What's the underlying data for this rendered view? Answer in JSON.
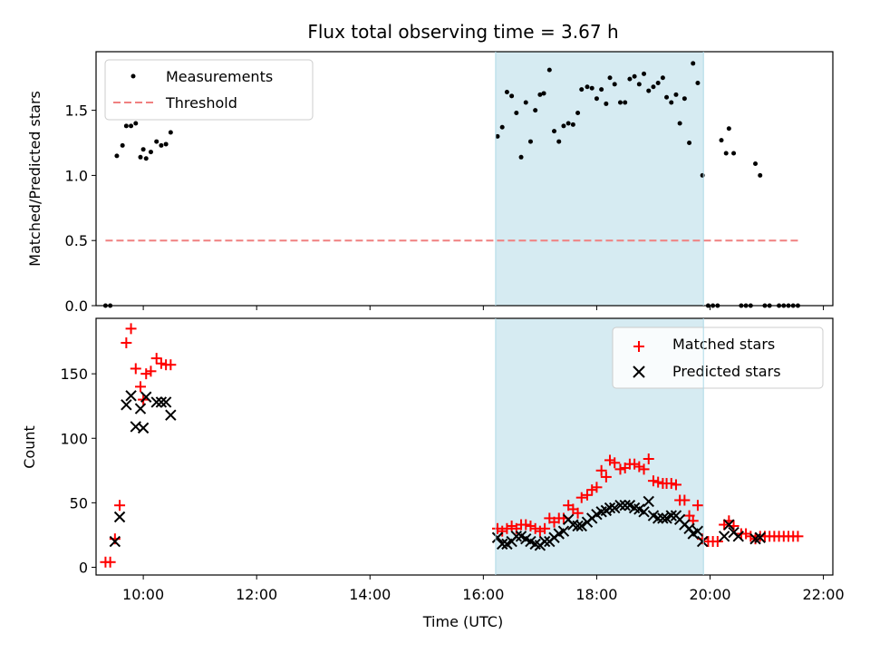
{
  "chart_data": {
    "type": "scatter",
    "title": "Flux total observing time = 3.67 h",
    "xlabel": "Time (UTC)",
    "xlim": [
      "09:10",
      "22:10"
    ],
    "x_ticks": [
      "10:00",
      "12:00",
      "14:00",
      "16:00",
      "18:00",
      "20:00",
      "22:00"
    ],
    "shaded_span": {
      "start": "16:13",
      "end": "19:53",
      "color": "#add8e6"
    },
    "panels": [
      {
        "ylabel": "Matched/Predicted stars",
        "ylim": [
          0,
          1.95
        ],
        "y_ticks": [
          "0.0",
          "0.5",
          "1.0",
          "1.5"
        ],
        "legend": {
          "position": "upper-left"
        },
        "series": [
          {
            "name": "Measurements",
            "marker": "dot",
            "color": "#000000",
            "points": [
              [
                "09:20",
                0.0
              ],
              [
                "09:25",
                0.0
              ],
              [
                "09:32",
                1.15
              ],
              [
                "09:38",
                1.23
              ],
              [
                "09:42",
                1.38
              ],
              [
                "09:47",
                1.38
              ],
              [
                "09:52",
                1.4
              ],
              [
                "09:57",
                1.14
              ],
              [
                "10:00",
                1.2
              ],
              [
                "10:03",
                1.13
              ],
              [
                "10:08",
                1.18
              ],
              [
                "10:14",
                1.26
              ],
              [
                "10:19",
                1.23
              ],
              [
                "10:24",
                1.24
              ],
              [
                "10:29",
                1.33
              ],
              [
                "16:15",
                1.3
              ],
              [
                "16:20",
                1.37
              ],
              [
                "16:25",
                1.64
              ],
              [
                "16:30",
                1.61
              ],
              [
                "16:35",
                1.48
              ],
              [
                "16:40",
                1.14
              ],
              [
                "16:45",
                1.56
              ],
              [
                "16:50",
                1.26
              ],
              [
                "16:55",
                1.5
              ],
              [
                "17:00",
                1.62
              ],
              [
                "17:04",
                1.63
              ],
              [
                "17:10",
                1.81
              ],
              [
                "17:15",
                1.34
              ],
              [
                "17:20",
                1.26
              ],
              [
                "17:25",
                1.38
              ],
              [
                "17:30",
                1.4
              ],
              [
                "17:35",
                1.39
              ],
              [
                "17:40",
                1.48
              ],
              [
                "17:44",
                1.66
              ],
              [
                "17:50",
                1.68
              ],
              [
                "17:55",
                1.67
              ],
              [
                "18:00",
                1.59
              ],
              [
                "18:05",
                1.66
              ],
              [
                "18:10",
                1.55
              ],
              [
                "18:14",
                1.75
              ],
              [
                "18:19",
                1.7
              ],
              [
                "18:25",
                1.56
              ],
              [
                "18:30",
                1.56
              ],
              [
                "18:35",
                1.74
              ],
              [
                "18:40",
                1.76
              ],
              [
                "18:45",
                1.7
              ],
              [
                "18:50",
                1.78
              ],
              [
                "18:55",
                1.65
              ],
              [
                "19:00",
                1.68
              ],
              [
                "19:05",
                1.71
              ],
              [
                "19:10",
                1.75
              ],
              [
                "19:14",
                1.6
              ],
              [
                "19:19",
                1.56
              ],
              [
                "19:24",
                1.62
              ],
              [
                "19:28",
                1.4
              ],
              [
                "19:33",
                1.59
              ],
              [
                "19:38",
                1.25
              ],
              [
                "19:42",
                1.86
              ],
              [
                "19:47",
                1.71
              ],
              [
                "19:52",
                1.0
              ],
              [
                "19:58",
                0.0
              ],
              [
                "20:03",
                0.0
              ],
              [
                "20:08",
                0.0
              ],
              [
                "20:12",
                1.27
              ],
              [
                "20:17",
                1.17
              ],
              [
                "20:20",
                1.36
              ],
              [
                "20:25",
                1.17
              ],
              [
                "20:33",
                0.0
              ],
              [
                "20:38",
                0.0
              ],
              [
                "20:43",
                0.0
              ],
              [
                "20:48",
                1.09
              ],
              [
                "20:53",
                1.0
              ],
              [
                "20:58",
                0.0
              ],
              [
                "21:03",
                0.0
              ],
              [
                "21:13",
                0.0
              ],
              [
                "21:18",
                0.0
              ],
              [
                "21:23",
                0.0
              ],
              [
                "21:28",
                0.0
              ],
              [
                "21:33",
                0.0
              ]
            ]
          },
          {
            "name": "Threshold",
            "style": "dashed",
            "color": "#f08080",
            "line": [
              [
                "09:20",
                0.5
              ],
              [
                "21:35",
                0.5
              ]
            ]
          }
        ]
      },
      {
        "ylabel": "Count",
        "ylim": [
          -6,
          193
        ],
        "y_ticks": [
          "0",
          "50",
          "100",
          "150"
        ],
        "legend": {
          "position": "upper-right"
        },
        "series": [
          {
            "name": "Matched stars",
            "marker": "plus",
            "color": "#ff0000",
            "points": [
              [
                "09:20",
                4
              ],
              [
                "09:25",
                4
              ],
              [
                "09:30",
                22
              ],
              [
                "09:35",
                48
              ],
              [
                "09:42",
                174
              ],
              [
                "09:47",
                185
              ],
              [
                "09:52",
                154
              ],
              [
                "09:57",
                140
              ],
              [
                "10:00",
                130
              ],
              [
                "10:03",
                150
              ],
              [
                "10:08",
                152
              ],
              [
                "10:14",
                162
              ],
              [
                "10:19",
                158
              ],
              [
                "10:24",
                157
              ],
              [
                "10:29",
                157
              ],
              [
                "16:15",
                30
              ],
              [
                "16:20",
                28
              ],
              [
                "16:25",
                30
              ],
              [
                "16:30",
                32
              ],
              [
                "16:35",
                30
              ],
              [
                "16:40",
                33
              ],
              [
                "16:45",
                33
              ],
              [
                "16:50",
                32
              ],
              [
                "16:55",
                30
              ],
              [
                "17:00",
                28
              ],
              [
                "17:05",
                30
              ],
              [
                "17:10",
                38
              ],
              [
                "17:15",
                35
              ],
              [
                "17:20",
                38
              ],
              [
                "17:25",
                38
              ],
              [
                "17:30",
                48
              ],
              [
                "17:35",
                45
              ],
              [
                "17:40",
                42
              ],
              [
                "17:44",
                54
              ],
              [
                "17:50",
                56
              ],
              [
                "17:55",
                60
              ],
              [
                "18:00",
                62
              ],
              [
                "18:05",
                75
              ],
              [
                "18:10",
                70
              ],
              [
                "18:14",
                83
              ],
              [
                "18:19",
                81
              ],
              [
                "18:25",
                76
              ],
              [
                "18:30",
                77
              ],
              [
                "18:35",
                80
              ],
              [
                "18:40",
                80
              ],
              [
                "18:45",
                78
              ],
              [
                "18:50",
                76
              ],
              [
                "18:55",
                84
              ],
              [
                "19:00",
                67
              ],
              [
                "19:05",
                66
              ],
              [
                "19:10",
                65
              ],
              [
                "19:14",
                65
              ],
              [
                "19:19",
                65
              ],
              [
                "19:24",
                64
              ],
              [
                "19:28",
                52
              ],
              [
                "19:33",
                52
              ],
              [
                "19:38",
                40
              ],
              [
                "19:42",
                36
              ],
              [
                "19:47",
                48
              ],
              [
                "19:52",
                22
              ],
              [
                "19:58",
                20
              ],
              [
                "20:03",
                20
              ],
              [
                "20:08",
                20
              ],
              [
                "20:15",
                33
              ],
              [
                "20:20",
                36
              ],
              [
                "20:25",
                32
              ],
              [
                "20:33",
                26
              ],
              [
                "20:38",
                26
              ],
              [
                "20:43",
                24
              ],
              [
                "20:48",
                22
              ],
              [
                "20:53",
                24
              ],
              [
                "20:58",
                24
              ],
              [
                "21:03",
                24
              ],
              [
                "21:08",
                24
              ],
              [
                "21:13",
                24
              ],
              [
                "21:18",
                24
              ],
              [
                "21:23",
                24
              ],
              [
                "21:28",
                24
              ],
              [
                "21:33",
                24
              ]
            ]
          },
          {
            "name": "Predicted stars",
            "marker": "x",
            "color": "#000000",
            "points": [
              [
                "09:30",
                20
              ],
              [
                "09:35",
                39
              ],
              [
                "09:42",
                126
              ],
              [
                "09:47",
                133
              ],
              [
                "09:52",
                109
              ],
              [
                "09:57",
                123
              ],
              [
                "10:00",
                108
              ],
              [
                "10:03",
                132
              ],
              [
                "10:14",
                128
              ],
              [
                "10:19",
                128
              ],
              [
                "10:24",
                128
              ],
              [
                "10:29",
                118
              ],
              [
                "16:15",
                23
              ],
              [
                "16:20",
                18
              ],
              [
                "16:25",
                18
              ],
              [
                "16:30",
                20
              ],
              [
                "16:35",
                24
              ],
              [
                "16:40",
                24
              ],
              [
                "16:45",
                22
              ],
              [
                "16:50",
                20
              ],
              [
                "16:55",
                18
              ],
              [
                "17:00",
                17
              ],
              [
                "17:05",
                20
              ],
              [
                "17:10",
                20
              ],
              [
                "17:15",
                23
              ],
              [
                "17:20",
                26
              ],
              [
                "17:25",
                28
              ],
              [
                "17:30",
                37
              ],
              [
                "17:35",
                33
              ],
              [
                "17:40",
                32
              ],
              [
                "17:44",
                32
              ],
              [
                "17:50",
                35
              ],
              [
                "17:55",
                38
              ],
              [
                "18:00",
                41
              ],
              [
                "18:05",
                43
              ],
              [
                "18:10",
                44
              ],
              [
                "18:14",
                46
              ],
              [
                "18:19",
                46
              ],
              [
                "18:25",
                48
              ],
              [
                "18:30",
                48
              ],
              [
                "18:35",
                48
              ],
              [
                "18:40",
                46
              ],
              [
                "18:45",
                45
              ],
              [
                "18:50",
                43
              ],
              [
                "18:55",
                51
              ],
              [
                "19:00",
                40
              ],
              [
                "19:05",
                38
              ],
              [
                "19:10",
                38
              ],
              [
                "19:14",
                38
              ],
              [
                "19:19",
                40
              ],
              [
                "19:24",
                40
              ],
              [
                "19:28",
                37
              ],
              [
                "19:33",
                33
              ],
              [
                "19:38",
                30
              ],
              [
                "19:42",
                26
              ],
              [
                "19:47",
                28
              ],
              [
                "19:52",
                20
              ],
              [
                "20:15",
                24
              ],
              [
                "20:20",
                33
              ],
              [
                "20:25",
                27
              ],
              [
                "20:30",
                24
              ],
              [
                "20:48",
                22
              ],
              [
                "20:53",
                23
              ]
            ]
          }
        ]
      }
    ]
  }
}
